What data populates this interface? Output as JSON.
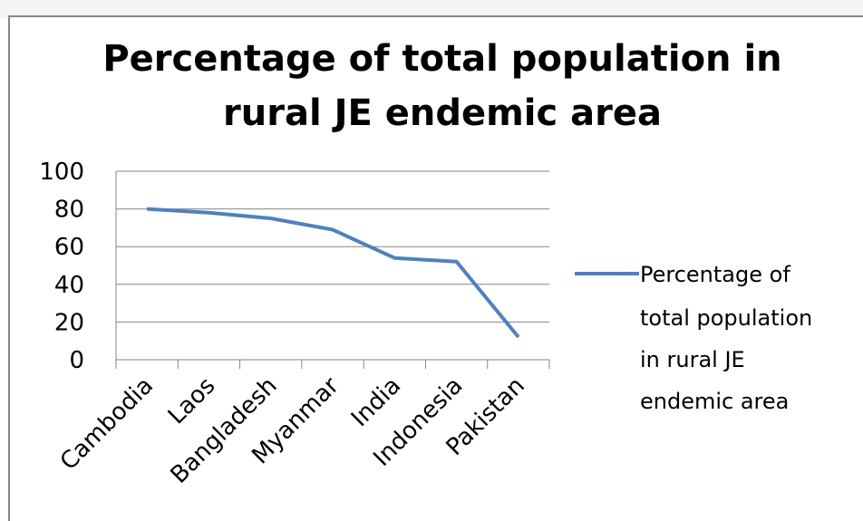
{
  "chart_data": {
    "type": "line",
    "title": "Percentage of total population in rural JE endemic area",
    "title_lines": [
      "Percentage of total population in",
      "rural JE endemic area"
    ],
    "categories": [
      "Cambodia",
      "Laos",
      "Bangladesh",
      "Myanmar",
      "India",
      "Indonesia",
      "Pakistan"
    ],
    "series": [
      {
        "name": "Percentage of total population in rural JE endemic area",
        "values": [
          80,
          78,
          75,
          69,
          54,
          52,
          12
        ],
        "color": "#4f81bd"
      }
    ],
    "legend_lines": [
      "Percentage of",
      "total population",
      "in rural JE",
      "endemic area"
    ],
    "y_ticks": [
      "100",
      "80",
      "60",
      "40",
      "20",
      "0"
    ],
    "ylim": [
      0,
      100
    ],
    "grid": true,
    "legend_position": "right"
  }
}
